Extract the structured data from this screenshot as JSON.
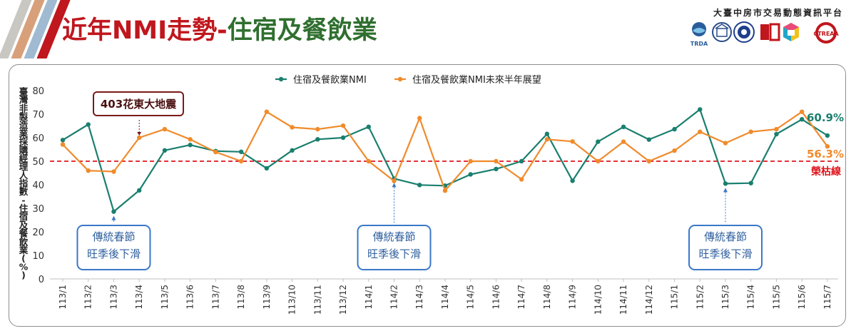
{
  "header": {
    "title_part1": "近年NMI走勢-",
    "title_part2": "住宿及餐飲業",
    "platform_name": "大臺中房市交易動態資訊平台",
    "logo_labels": [
      "TRDA",
      "CTREAA"
    ],
    "colors": {
      "title_red": "#c0161d",
      "title_green": "#2f6f2f",
      "stripe_colors": [
        "#c9c7c2",
        "#d8a07a",
        "#9fbad1",
        "#c0161d"
      ]
    }
  },
  "chart_data": {
    "type": "line",
    "ylabel": "臺灣非製造業採購經理人指數-住宿及餐飲業(%)",
    "ylim": [
      0,
      80
    ],
    "yticks": [
      0,
      10,
      20,
      30,
      40,
      50,
      60,
      70,
      80
    ],
    "categories": [
      "113/1",
      "113/2",
      "113/3",
      "113/4",
      "113/5",
      "113/6",
      "113/7",
      "113/8",
      "113/9",
      "113/10",
      "113/11",
      "113/12",
      "114/1",
      "114/2",
      "114/3",
      "114/4",
      "114/5",
      "114/6",
      "114/7",
      "114/8",
      "114/9",
      "114/10",
      "114/11",
      "114/12",
      "115/1",
      "115/2",
      "115/3",
      "115/4",
      "115/5",
      "115/6",
      "115/7"
    ],
    "series": [
      {
        "name": "住宿及餐飲業NMI",
        "color": "#1a7f6e",
        "values": [
          59.0,
          65.6,
          28.6,
          37.6,
          54.6,
          56.9,
          54.3,
          54.0,
          47.0,
          54.6,
          59.3,
          60.0,
          64.6,
          42.6,
          39.9,
          39.6,
          44.4,
          46.7,
          50.0,
          61.6,
          41.7,
          58.3,
          64.6,
          59.2,
          63.6,
          72.0,
          40.5,
          40.7,
          61.5,
          67.8,
          60.9
        ]
      },
      {
        "name": "住宿及餐飲業NMI未來半年展望",
        "color": "#f08b2c",
        "values": [
          57.1,
          46.0,
          45.6,
          60.0,
          63.6,
          59.3,
          53.9,
          50.0,
          71.0,
          64.4,
          63.6,
          65.1,
          50.0,
          41.6,
          68.3,
          37.5,
          50.0,
          50.0,
          42.3,
          59.3,
          58.4,
          50.0,
          58.3,
          50.0,
          54.5,
          62.5,
          57.7,
          62.5,
          63.6,
          71.0,
          56.3
        ]
      }
    ],
    "reference_line": {
      "value": 50,
      "label": "榮枯線",
      "color": "#e0141b"
    },
    "end_labels": [
      "60.9%",
      "56.3%"
    ],
    "annotations": [
      {
        "text": "403花東大地震",
        "x_index": 3,
        "style": "event",
        "color": "#7a1a1a"
      },
      {
        "text": "傳統春節\n旺季後下滑",
        "x_index": 2,
        "style": "note",
        "color": "#3a78c9"
      },
      {
        "text": "傳統春節\n旺季後下滑",
        "x_index": 13,
        "style": "note",
        "color": "#3a78c9"
      },
      {
        "text": "傳統春節\n旺季後下滑",
        "x_index": 26,
        "style": "note",
        "color": "#3a78c9"
      }
    ],
    "legend_position": "top-center",
    "grid": false
  }
}
